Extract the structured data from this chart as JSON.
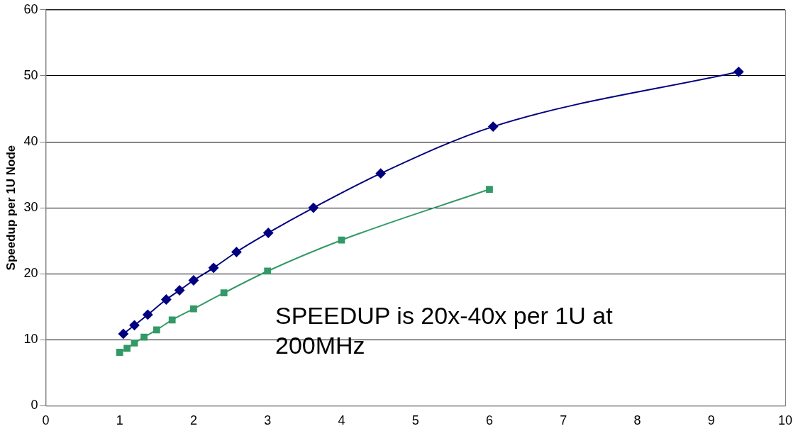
{
  "chart_data": {
    "type": "line",
    "ylabel": "Speedup per 1U Node",
    "xlim": [
      0,
      10
    ],
    "xticks": [
      0,
      1,
      2,
      3,
      4,
      5,
      6,
      7,
      8,
      9,
      10
    ],
    "ylim": [
      0,
      60
    ],
    "yticks": [
      0,
      10,
      20,
      30,
      40,
      50,
      60
    ],
    "grid": "y",
    "legend": false,
    "annotations": [
      "SPEEDUP is 20x-40x per 1U at 200MHz"
    ],
    "series": [
      {
        "color": "#000080",
        "marker": "diamond",
        "x": [
          1.05,
          1.2,
          1.38,
          1.63,
          1.81,
          2.0,
          2.27,
          2.58,
          3.01,
          3.62,
          4.53,
          6.05,
          9.37
        ],
        "values": [
          10.9,
          12.2,
          13.8,
          16.1,
          17.5,
          19.0,
          20.9,
          23.3,
          26.2,
          30.0,
          35.2,
          42.3,
          50.6
        ]
      },
      {
        "color": "#339966",
        "marker": "square",
        "x": [
          1.0,
          1.1,
          1.2,
          1.33,
          1.5,
          1.71,
          2.0,
          2.41,
          3.0,
          4.0,
          6.0
        ],
        "values": [
          8.1,
          8.7,
          9.5,
          10.4,
          11.5,
          13.0,
          14.7,
          17.1,
          20.4,
          25.1,
          32.8
        ]
      }
    ]
  }
}
